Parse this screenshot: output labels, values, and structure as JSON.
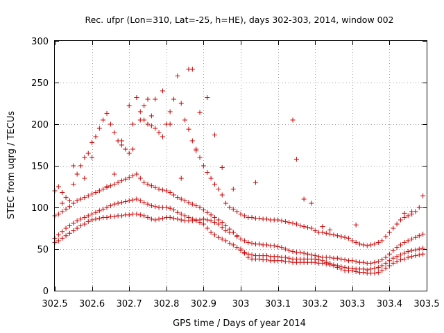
{
  "chart_data": {
    "type": "scatter",
    "title": "Rec. ufpr (Lon=310, Lat=-25, h=HE), days 302-303, 2014, window 002",
    "xlabel": "GPS time / Days of year 2014",
    "ylabel": "STEC from uqrg / TECUs",
    "xlim": [
      302.5,
      303.5
    ],
    "ylim": [
      0,
      300
    ],
    "xticks": [
      302.5,
      302.6,
      302.7,
      302.8,
      302.9,
      303,
      303.1,
      303.2,
      303.3,
      303.4,
      303.5
    ],
    "xtick_labels": [
      "302.5",
      "302.6",
      "302.7",
      "302.8",
      "302.9",
      "303",
      "303.1",
      "303.2",
      "303.3",
      "303.4",
      "303.5"
    ],
    "yticks": [
      0,
      50,
      100,
      150,
      200,
      250,
      300
    ],
    "ytick_labels": [
      "0",
      "50",
      "100",
      "150",
      "200",
      "250",
      "300"
    ],
    "grid": true,
    "marker": "plus",
    "color": "#cc0000",
    "series": [
      {
        "x": [
          302.5,
          302.51,
          302.52,
          302.53,
          302.54,
          302.55,
          302.56,
          302.57,
          302.58,
          302.59,
          302.6,
          302.61,
          302.62,
          302.63,
          302.64,
          302.65,
          302.66,
          302.67,
          302.68,
          302.69,
          302.7,
          302.71,
          302.72,
          302.73,
          302.74,
          302.75,
          302.76,
          302.77,
          302.78,
          302.79,
          302.8,
          302.81,
          302.82,
          302.83,
          302.84,
          302.85,
          302.86,
          302.87,
          302.88,
          302.89,
          302.9,
          302.91,
          302.92,
          302.93,
          302.94,
          302.95,
          302.96,
          302.97,
          302.98,
          302.99,
          303.0,
          303.01,
          303.02,
          303.03,
          303.04,
          303.05,
          303.06,
          303.07,
          303.08,
          303.09,
          303.1,
          303.11,
          303.12,
          303.13,
          303.14,
          303.15,
          303.16,
          303.17,
          303.18,
          303.19,
          303.2,
          303.21,
          303.22,
          303.23,
          303.24,
          303.25,
          303.26,
          303.27,
          303.28,
          303.29,
          303.3,
          303.31,
          303.32,
          303.33,
          303.34,
          303.35,
          303.36,
          303.37,
          303.38,
          303.39,
          303.4,
          303.41,
          303.42,
          303.43,
          303.44,
          303.45,
          303.46,
          303.47,
          303.48,
          303.49
        ],
        "y": [
          58,
          60,
          63,
          66,
          69,
          72,
          75,
          78,
          80,
          83,
          85,
          86,
          87,
          88,
          88,
          89,
          89,
          90,
          90,
          91,
          91,
          92,
          92,
          91,
          90,
          88,
          86,
          85,
          86,
          87,
          88,
          88,
          87,
          86,
          85,
          84,
          84,
          84,
          85,
          85,
          86,
          85,
          84,
          82,
          80,
          76,
          72,
          70,
          70,
          65,
          50,
          45,
          40,
          38,
          38,
          38,
          37,
          37,
          36,
          36,
          36,
          36,
          35,
          35,
          34,
          34,
          34,
          34,
          34,
          34,
          34,
          33,
          33,
          32,
          31,
          30,
          28,
          26,
          24,
          24,
          24,
          23,
          22,
          22,
          21,
          21,
          21,
          22,
          24,
          27,
          30,
          33,
          35,
          37,
          38,
          40,
          41,
          42,
          43,
          44
        ]
      },
      {
        "x": [
          302.5,
          302.51,
          302.52,
          302.53,
          302.54,
          302.55,
          302.56,
          302.57,
          302.58,
          302.59,
          302.6,
          302.61,
          302.62,
          302.63,
          302.64,
          302.65,
          302.66,
          302.67,
          302.68,
          302.69,
          302.7,
          302.71,
          302.72,
          302.73,
          302.74,
          302.75,
          302.76,
          302.77,
          302.78,
          302.79,
          302.8,
          302.81,
          302.82,
          302.83,
          302.84,
          302.85,
          302.86,
          302.87,
          302.88,
          302.89,
          302.9,
          302.91,
          302.92,
          302.93,
          302.94,
          302.95,
          302.96,
          302.97,
          302.98,
          302.99,
          303.0,
          303.01,
          303.02,
          303.03,
          303.04,
          303.05,
          303.06,
          303.07,
          303.08,
          303.09,
          303.1,
          303.11,
          303.12,
          303.13,
          303.14,
          303.15,
          303.16,
          303.17,
          303.18,
          303.19,
          303.2,
          303.21,
          303.22,
          303.23,
          303.24,
          303.25,
          303.26,
          303.27,
          303.28,
          303.29,
          303.3,
          303.31,
          303.32,
          303.33,
          303.34,
          303.35,
          303.36,
          303.37,
          303.38,
          303.39,
          303.4,
          303.41,
          303.42,
          303.43,
          303.44,
          303.45,
          303.46,
          303.47,
          303.48,
          303.49
        ],
        "y": [
          63,
          67,
          71,
          75,
          78,
          81,
          84,
          86,
          88,
          90,
          92,
          94,
          96,
          98,
          100,
          102,
          104,
          105,
          106,
          107,
          108,
          109,
          110,
          108,
          106,
          104,
          102,
          101,
          100,
          100,
          100,
          99,
          97,
          94,
          92,
          90,
          88,
          86,
          84,
          82,
          80,
          75,
          70,
          67,
          64,
          62,
          60,
          57,
          55,
          52,
          48,
          46,
          44,
          43,
          42,
          42,
          42,
          42,
          41,
          41,
          41,
          40,
          40,
          39,
          38,
          38,
          38,
          38,
          38,
          38,
          38,
          37,
          36,
          34,
          33,
          31,
          30,
          29,
          28,
          27,
          27,
          26,
          26,
          26,
          25,
          26,
          27,
          28,
          30,
          33,
          36,
          39,
          41,
          43,
          45,
          47,
          48,
          49,
          50,
          51
        ]
      },
      {
        "x": [
          302.5,
          302.51,
          302.52,
          302.53,
          302.54,
          302.55,
          302.56,
          302.57,
          302.58,
          302.59,
          302.6,
          302.61,
          302.62,
          302.63,
          302.64,
          302.65,
          302.66,
          302.67,
          302.68,
          302.69,
          302.7,
          302.71,
          302.72,
          302.73,
          302.74,
          302.75,
          302.76,
          302.77,
          302.78,
          302.79,
          302.8,
          302.81,
          302.82,
          302.83,
          302.84,
          302.85,
          302.86,
          302.87,
          302.88,
          302.89,
          302.9,
          302.91,
          302.92,
          302.93,
          302.94,
          302.95,
          302.96,
          302.97,
          302.98,
          302.99,
          303.0,
          303.01,
          303.02,
          303.03,
          303.04,
          303.05,
          303.06,
          303.07,
          303.08,
          303.09,
          303.1,
          303.11,
          303.12,
          303.13,
          303.14,
          303.15,
          303.16,
          303.17,
          303.18,
          303.19,
          303.2,
          303.21,
          303.22,
          303.23,
          303.24,
          303.25,
          303.26,
          303.27,
          303.28,
          303.29,
          303.3,
          303.31,
          303.32,
          303.33,
          303.34,
          303.35,
          303.36,
          303.37,
          303.38,
          303.39,
          303.4,
          303.41,
          303.42,
          303.43,
          303.44,
          303.45,
          303.46,
          303.47,
          303.48,
          303.49
        ],
        "y": [
          90,
          92,
          95,
          98,
          101,
          105,
          108,
          110,
          112,
          114,
          116,
          118,
          120,
          122,
          124,
          126,
          128,
          130,
          132,
          134,
          136,
          138,
          140,
          135,
          130,
          128,
          126,
          124,
          122,
          121,
          120,
          118,
          115,
          112,
          110,
          108,
          106,
          104,
          102,
          100,
          97,
          94,
          91,
          88,
          85,
          82,
          78,
          74,
          70,
          66,
          62,
          60,
          58,
          57,
          56,
          56,
          55,
          55,
          54,
          54,
          53,
          52,
          50,
          48,
          47,
          46,
          46,
          45,
          44,
          43,
          42,
          41,
          40,
          40,
          40,
          39,
          39,
          38,
          37,
          36,
          36,
          35,
          34,
          34,
          33,
          33,
          34,
          35,
          37,
          40,
          44,
          48,
          52,
          55,
          58,
          60,
          62,
          64,
          66,
          68
        ]
      },
      {
        "x": [
          302.5,
          302.51,
          302.52,
          302.53,
          302.54,
          302.55,
          302.56,
          302.57,
          302.58,
          302.59,
          302.6,
          302.61,
          302.62,
          302.63,
          302.64,
          302.65,
          302.66,
          302.67,
          302.68,
          302.69,
          302.7,
          302.71,
          302.72,
          302.73,
          302.74,
          302.75,
          302.76,
          302.77,
          302.78,
          302.79,
          302.8,
          302.81,
          302.82,
          302.83,
          302.84,
          302.85,
          302.86,
          302.87,
          302.88,
          302.89,
          302.9,
          302.91,
          302.92,
          302.93,
          302.94,
          302.95,
          302.96,
          302.97,
          302.98,
          302.99,
          303.0,
          303.01,
          303.02,
          303.03,
          303.04,
          303.05,
          303.06,
          303.07,
          303.08,
          303.09,
          303.1,
          303.11,
          303.12,
          303.13,
          303.14,
          303.15,
          303.16,
          303.17,
          303.18,
          303.19,
          303.2,
          303.21,
          303.22,
          303.23,
          303.24,
          303.25,
          303.26,
          303.27,
          303.28,
          303.29,
          303.3,
          303.31,
          303.32,
          303.33,
          303.34,
          303.35,
          303.36,
          303.37,
          303.38,
          303.39,
          303.4,
          303.41,
          303.42,
          303.43,
          303.44,
          303.45,
          303.46,
          303.47,
          303.48,
          303.49
        ],
        "y": [
          120,
          125,
          118,
          112,
          108,
          128,
          140,
          150,
          160,
          165,
          178,
          185,
          195,
          205,
          213,
          200,
          190,
          180,
          175,
          170,
          165,
          170,
          232,
          215,
          205,
          200,
          198,
          195,
          190,
          185,
          200,
          215,
          230,
          258,
          225,
          205,
          194,
          180,
          170,
          160,
          150,
          142,
          135,
          128,
          122,
          115,
          105,
          100,
          98,
          95,
          92,
          90,
          88,
          88,
          87,
          87,
          86,
          86,
          85,
          85,
          85,
          84,
          83,
          82,
          81,
          80,
          78,
          77,
          76,
          75,
          72,
          70,
          70,
          69,
          68,
          67,
          66,
          65,
          64,
          63,
          60,
          58,
          56,
          55,
          54,
          55,
          56,
          58,
          60,
          65,
          70,
          75,
          80,
          85,
          88,
          90,
          92,
          95,
          100,
          114
        ]
      },
      {
        "x": [
          302.52,
          302.55,
          302.58,
          302.6,
          302.62,
          302.64,
          302.66,
          302.68,
          302.7,
          302.71,
          302.73,
          302.74,
          302.75,
          302.76,
          302.77,
          302.79,
          302.81,
          302.84,
          302.86,
          302.87,
          302.88,
          302.89,
          302.91,
          302.93,
          302.95,
          302.98,
          303.04,
          303.14,
          303.15,
          303.17,
          303.19,
          303.22,
          303.24,
          303.27,
          303.31,
          303.44,
          303.46
        ],
        "y": [
          105,
          150,
          135,
          160,
          120,
          125,
          140,
          180,
          222,
          200,
          205,
          222,
          230,
          210,
          230,
          240,
          200,
          135,
          266,
          266,
          168,
          214,
          232,
          187,
          148,
          122,
          130,
          205,
          158,
          110,
          105,
          77,
          73,
          65,
          79,
          93,
          95
        ]
      }
    ]
  }
}
